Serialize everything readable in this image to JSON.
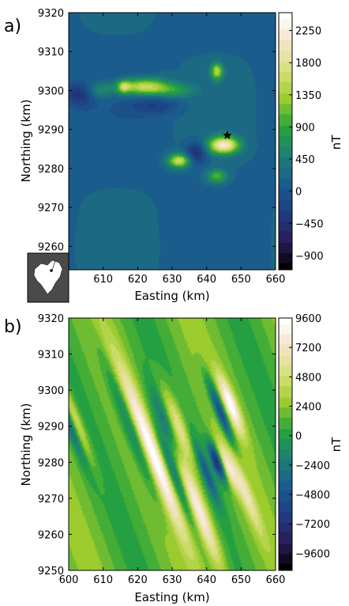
{
  "chart_data": [
    {
      "type": "heatmap",
      "panel_label": "a)",
      "title": "",
      "xlabel": "Easting (km)",
      "ylabel": "Northing (km)",
      "xlim": [
        600,
        660
      ],
      "ylim": [
        9254,
        9320
      ],
      "x_ticks": [
        610,
        620,
        630,
        640,
        650,
        660
      ],
      "x_tick_labels": [
        "610",
        "620",
        "630",
        "640",
        "650",
        "660"
      ],
      "y_ticks": [
        9260,
        9270,
        9280,
        9290,
        9300,
        9310,
        9320
      ],
      "y_tick_labels": [
        "9260",
        "9270",
        "9280",
        "9290",
        "9300",
        "9310",
        "9320"
      ],
      "colorbar": {
        "label": "nT",
        "range": [
          -1100,
          2500
        ],
        "ticks": [
          -900,
          -450,
          0,
          450,
          900,
          1350,
          1800,
          2250
        ],
        "tick_labels": [
          "−900",
          "−450",
          "0",
          "450",
          "900",
          "1350",
          "1800",
          "2250"
        ]
      },
      "background_value": 150,
      "anomalies": [
        {
          "x": 622,
          "y": 9301,
          "amp": 1500,
          "sx": 5,
          "sy": 1.5
        },
        {
          "x": 616,
          "y": 9301,
          "amp": 1000,
          "sx": 1.3,
          "sy": 1.1
        },
        {
          "x": 631,
          "y": 9300,
          "amp": 500,
          "sx": 4,
          "sy": 1.2
        },
        {
          "x": 609,
          "y": 9300,
          "amp": 500,
          "sx": 3,
          "sy": 1.5
        },
        {
          "x": 603,
          "y": 9299,
          "amp": -600,
          "sx": 3,
          "sy": 2
        },
        {
          "x": 643,
          "y": 9305,
          "amp": 1300,
          "sx": 1.2,
          "sy": 1.5
        },
        {
          "x": 645,
          "y": 9286,
          "amp": 2000,
          "sx": 3,
          "sy": 1.5
        },
        {
          "x": 632,
          "y": 9282,
          "amp": 1500,
          "sx": 2.2,
          "sy": 1.2
        },
        {
          "x": 643,
          "y": 9278,
          "amp": 900,
          "sx": 2,
          "sy": 1.2
        },
        {
          "x": 637,
          "y": 9284,
          "amp": -700,
          "sx": 2,
          "sy": 2
        },
        {
          "x": 625,
          "y": 9296,
          "amp": -400,
          "sx": 5,
          "sy": 1.5
        }
      ],
      "markers": [
        {
          "shape": "star",
          "x": 646,
          "y": 9288.5
        }
      ]
    },
    {
      "type": "heatmap",
      "panel_label": "b)",
      "title": "",
      "xlabel": "Easting (km)",
      "ylabel": "Northing (km)",
      "xlim": [
        600,
        660
      ],
      "ylim": [
        9250,
        9320
      ],
      "x_ticks": [
        600,
        610,
        620,
        630,
        640,
        650,
        660
      ],
      "x_tick_labels": [
        "600",
        "610",
        "620",
        "630",
        "640",
        "650",
        "660"
      ],
      "y_ticks": [
        9250,
        9260,
        9270,
        9280,
        9290,
        9300,
        9310,
        9320
      ],
      "y_tick_labels": [
        "9250",
        "9260",
        "9270",
        "9280",
        "9290",
        "9300",
        "9310",
        "9320"
      ],
      "colorbar": {
        "label": "nT",
        "range": [
          -11000,
          9600
        ],
        "ticks": [
          -9600,
          -7200,
          -4800,
          -2400,
          0,
          2400,
          4800,
          7200,
          9600
        ],
        "tick_labels": [
          "−9600",
          "−7200",
          "−4800",
          "−2400",
          "0",
          "2400",
          "4800",
          "7200",
          "9600"
        ]
      },
      "background_value": 1500,
      "stripe_angle_deg": 22,
      "anomalies": [
        {
          "x": 624,
          "y": 9283,
          "amp": 8500,
          "along": 18,
          "across": 2.0
        },
        {
          "x": 637,
          "y": 9268,
          "amp": 8500,
          "along": 13,
          "across": 1.8
        },
        {
          "x": 619,
          "y": 9288,
          "amp": -6000,
          "along": 16,
          "across": 1.6
        },
        {
          "x": 631,
          "y": 9276,
          "amp": -6500,
          "along": 12,
          "across": 1.5
        },
        {
          "x": 647,
          "y": 9296,
          "amp": 7500,
          "along": 6,
          "across": 1.2
        },
        {
          "x": 644,
          "y": 9294,
          "amp": -8000,
          "along": 7,
          "across": 1.0
        },
        {
          "x": 632,
          "y": 9290,
          "amp": 5000,
          "along": 8,
          "across": 1.5
        },
        {
          "x": 628,
          "y": 9291,
          "amp": -4000,
          "along": 8,
          "across": 1.2
        },
        {
          "x": 602,
          "y": 9292,
          "amp": 4000,
          "along": 9,
          "across": 1.0
        },
        {
          "x": 600,
          "y": 9291,
          "amp": -4000,
          "along": 9,
          "across": 1.0
        },
        {
          "x": 643,
          "y": 9280,
          "amp": -9000,
          "along": 4,
          "across": 1.0
        },
        {
          "x": 646,
          "y": 9279,
          "amp": 5000,
          "along": 5,
          "across": 1.0
        },
        {
          "x": 651,
          "y": 9272,
          "amp": 4500,
          "along": 9,
          "across": 1.2
        },
        {
          "x": 640,
          "y": 9277,
          "amp": -5000,
          "along": 7,
          "across": 1.0
        }
      ]
    }
  ],
  "colormap": [
    "#000000",
    "#2a1d5a",
    "#1e3d82",
    "#1a5c8c",
    "#1e7f75",
    "#25a33a",
    "#9ccb2e",
    "#d9e07a",
    "#f3e3c8",
    "#ffffff"
  ]
}
